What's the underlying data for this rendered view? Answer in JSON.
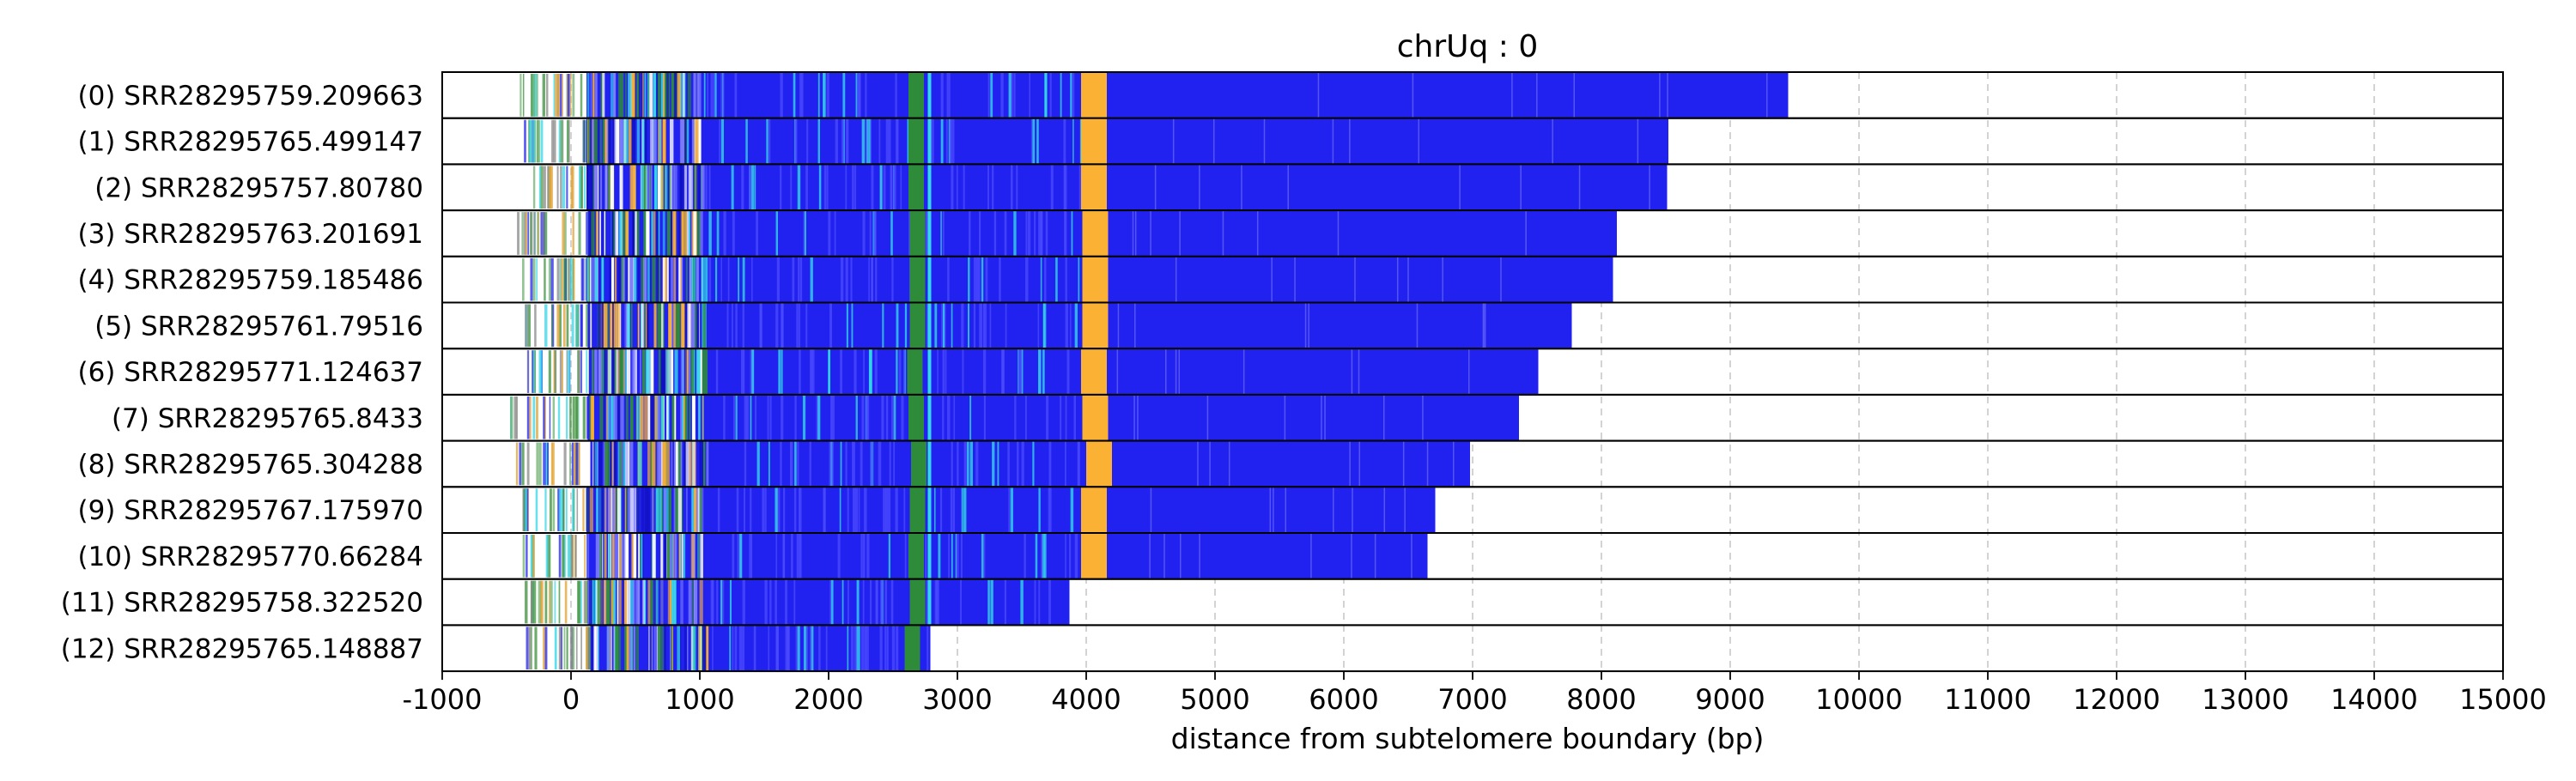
{
  "chart_data": {
    "type": "bar",
    "orientation": "horizontal",
    "title": "chrUq : 0",
    "xlabel": "distance from subtelomere boundary (bp)",
    "ylabel": "",
    "xlim": [
      -1000,
      15000
    ],
    "xticks": [
      "-1000",
      "0",
      "1000",
      "2000",
      "3000",
      "4000",
      "5000",
      "6000",
      "7000",
      "8000",
      "9000",
      "10000",
      "11000",
      "12000",
      "13000",
      "14000",
      "15000"
    ],
    "grid": "vertical-dashed",
    "colors": {
      "main_repeat": "#2222f0",
      "green_block": "#2e8b3a",
      "orange_block": "#fbb234",
      "cyan_marks": "#35d6e8",
      "grid": "#c8c8c8"
    },
    "categories": [
      "(0) SRR28295759.209663",
      "(1) SRR28295765.499147",
      "(2) SRR28295757.80780",
      "(3) SRR28295763.201691",
      "(4) SRR28295759.185486",
      "(5) SRR28295761.79516",
      "(6) SRR28295771.124637",
      "(7) SRR28295765.8433",
      "(8) SRR28295765.304288",
      "(9) SRR28295767.175970",
      "(10) SRR28295770.66284",
      "(11) SRR28295758.322520",
      "(12) SRR28295765.148887"
    ],
    "reads": [
      {
        "start": -400,
        "solid_start": 120,
        "end": 9450,
        "green": [
          2620,
          2740
        ],
        "orange": [
          3960,
          4160
        ]
      },
      {
        "start": -380,
        "solid_start": 120,
        "end": 8520,
        "green": [
          2620,
          2740
        ],
        "orange": [
          3960,
          4160
        ]
      },
      {
        "start": -380,
        "solid_start": 120,
        "end": 8510,
        "green": [
          2620,
          2740
        ],
        "orange": [
          3960,
          4160
        ]
      },
      {
        "start": -450,
        "solid_start": 130,
        "end": 8120,
        "green": [
          2630,
          2750
        ],
        "orange": [
          3970,
          4170
        ]
      },
      {
        "start": -380,
        "solid_start": 120,
        "end": 8090,
        "green": [
          2630,
          2750
        ],
        "orange": [
          3970,
          4170
        ]
      },
      {
        "start": -380,
        "solid_start": 130,
        "end": 7770,
        "green": [
          2630,
          2750
        ],
        "orange": [
          3970,
          4170
        ]
      },
      {
        "start": -380,
        "solid_start": 140,
        "end": 7510,
        "green": [
          2610,
          2730
        ],
        "orange": [
          3960,
          4160
        ]
      },
      {
        "start": -500,
        "solid_start": 130,
        "end": 7360,
        "green": [
          2620,
          2740
        ],
        "orange": [
          3970,
          4170
        ]
      },
      {
        "start": -480,
        "solid_start": 150,
        "end": 6980,
        "green": [
          2640,
          2760
        ],
        "orange": [
          4000,
          4200
        ]
      },
      {
        "start": -380,
        "solid_start": 120,
        "end": 6710,
        "green": [
          2630,
          2750
        ],
        "orange": [
          3960,
          4160
        ]
      },
      {
        "start": -380,
        "solid_start": 120,
        "end": 6650,
        "green": [
          2620,
          2740
        ],
        "orange": [
          3960,
          4160
        ]
      },
      {
        "start": -380,
        "solid_start": 130,
        "end": 3870,
        "green": [
          2630,
          2750
        ],
        "orange": null
      },
      {
        "start": -400,
        "solid_start": 150,
        "end": 2790,
        "green": [
          2590,
          2710
        ],
        "orange": null
      }
    ]
  }
}
